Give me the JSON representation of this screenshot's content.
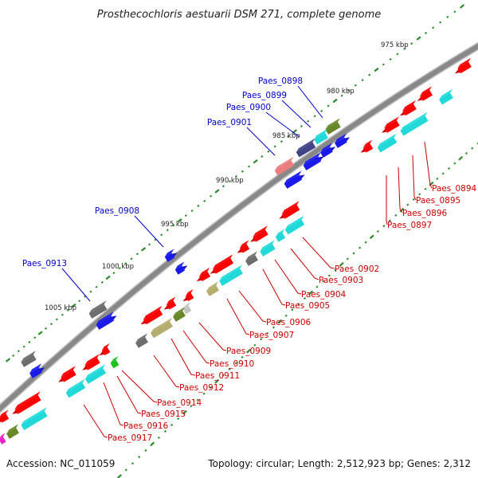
{
  "title": "Prosthecochloris aestuarii DSM 271, complete genome",
  "accession": "Accession: NC_011059",
  "summary": "Topology: circular; Length: 2,512,923 bp; Genes: 2,312",
  "scale_labels": [
    "975 kbp",
    "980 kbp",
    "985 kbp",
    "990 kbp",
    "995 kbp",
    "1000 kbp",
    "1005 kbp"
  ],
  "colors": {
    "forward_label": "#0000cc",
    "reverse_label": "#cc0000",
    "backbone": "#888888",
    "tick": "#2a8a2a",
    "red": "#ff0000",
    "blue": "#1a1aee",
    "cyan": "#22dddd",
    "gray": "#707070",
    "olive": "#6a8a2a",
    "khaki": "#b8b070",
    "pink": "#ee8080",
    "slate": "#44448a",
    "magenta": "#ee22cc"
  },
  "forward_labels": [
    "Paes_0898",
    "Paes_0899",
    "Paes_0900",
    "Paes_0901",
    "Paes_0908",
    "Paes_0913"
  ],
  "reverse_labels": [
    "Paes_0894",
    "Paes_0895",
    "Paes_0896",
    "Paes_0897",
    "Paes_0902",
    "Paes_0903",
    "Paes_0904",
    "Paes_0905",
    "Paes_0906",
    "Paes_0907",
    "Paes_0909",
    "Paes_0910",
    "Paes_0911",
    "Paes_0912",
    "Paes_0914",
    "Paes_0915",
    "Paes_0916",
    "Paes_0917"
  ]
}
